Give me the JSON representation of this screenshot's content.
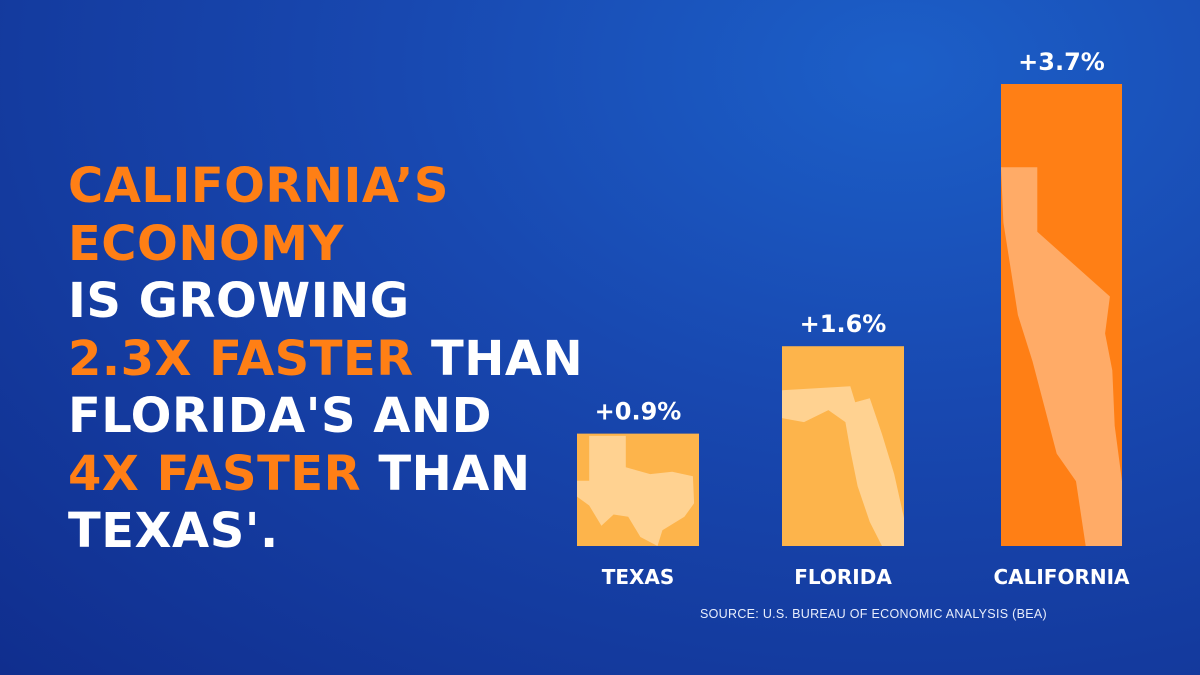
{
  "headline": {
    "line1": "California’s",
    "line2": "Economy",
    "line3": "is growing",
    "line4_accent": "2.3X faster",
    "line4_rest": " than",
    "line5": "Florida's and",
    "line6_accent": "4X faster",
    "line6_rest": " than",
    "line7": "Texas'."
  },
  "colors": {
    "background": "#1848b0",
    "accent_orange": "#ff7f15",
    "bar_light": "#fdb44b",
    "state_shape": "#ffd599",
    "state_shape_ca": "#ffb070",
    "text": "#ffffff"
  },
  "chart_data": {
    "type": "bar",
    "categories": [
      "TEXAS",
      "FLORIDA",
      "CALIFORNIA"
    ],
    "values": [
      0.9,
      1.6,
      3.7
    ],
    "data_labels": [
      "+0.9%",
      "+1.6%",
      "+3.7%"
    ],
    "title": "",
    "xlabel": "",
    "ylabel": "",
    "ylim": [
      0,
      3.7
    ],
    "grid": false,
    "bar_icons": [
      "texas-map-icon",
      "florida-map-icon",
      "california-map-icon"
    ]
  },
  "source": "SOURCE: U.S. BUREAU OF ECONOMIC ANALYSIS (BEA)"
}
